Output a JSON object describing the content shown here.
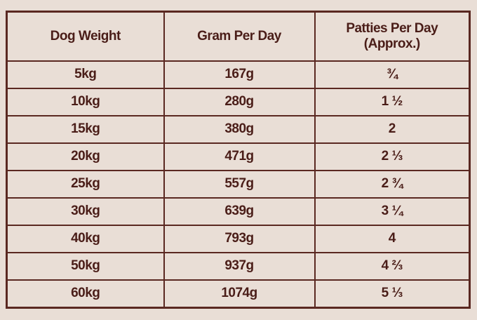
{
  "table": {
    "headers": [
      "Dog Weight",
      "Gram Per Day",
      "Patties Per Day (Approx.)"
    ],
    "rows": [
      [
        "5kg",
        "167g",
        "¾"
      ],
      [
        "10kg",
        "280g",
        "1 ½"
      ],
      [
        "15kg",
        "380g",
        "2"
      ],
      [
        "20kg",
        "471g",
        "2 ⅓"
      ],
      [
        "25kg",
        "557g",
        "2 ¾"
      ],
      [
        "30kg",
        "639g",
        "3 ¼"
      ],
      [
        "40kg",
        "793g",
        "4"
      ],
      [
        "50kg",
        "937g",
        "4 ⅔"
      ],
      [
        "60kg",
        "1074g",
        "5 ⅓"
      ]
    ]
  }
}
